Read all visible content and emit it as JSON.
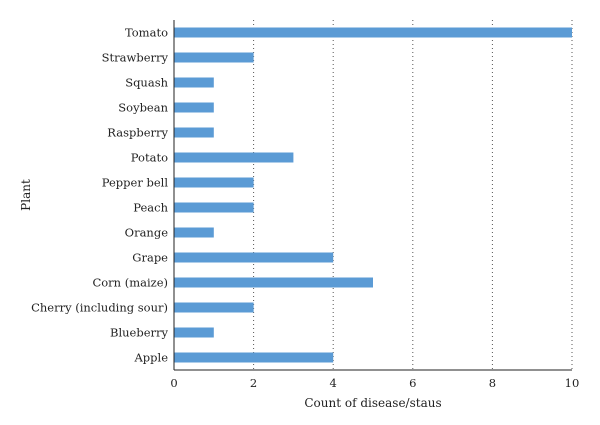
{
  "chart_data": {
    "type": "bar",
    "orientation": "horizontal",
    "title": "",
    "xlabel": "Count of disease/staus",
    "ylabel": "Plant",
    "xlim": [
      0,
      10
    ],
    "xticks": [
      0,
      2,
      4,
      6,
      8,
      10
    ],
    "grid": "vertical-dotted",
    "bar_color": "#5b9bd5",
    "categories": [
      "Tomato",
      "Strawberry",
      "Squash",
      "Soybean",
      "Raspberry",
      "Potato",
      "Pepper bell",
      "Peach",
      "Orange",
      "Grape",
      "Corn (maize)",
      "Cherry (including sour)",
      "Blueberry",
      "Apple"
    ],
    "values": [
      10,
      2,
      1,
      1,
      1,
      3,
      2,
      2,
      1,
      4,
      5,
      2,
      1,
      4
    ]
  }
}
